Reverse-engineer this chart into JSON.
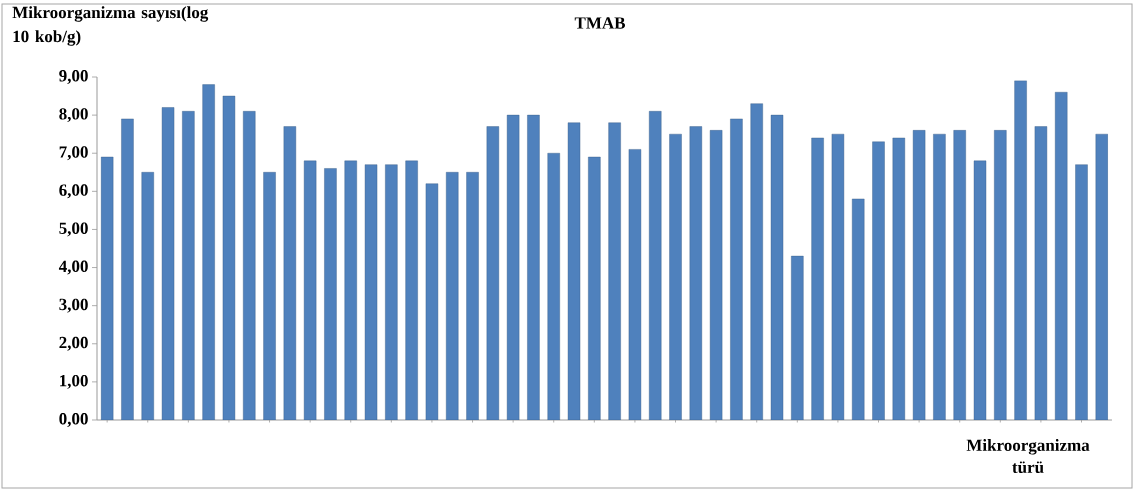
{
  "chart_data": {
    "type": "bar",
    "title": "TMAB",
    "xlabel": "Mikroorganizma türü",
    "ylabel": "Mikroorganizma sayısı(log 10 kob/g)",
    "categories": [
      null,
      null,
      null,
      null,
      null,
      null,
      null,
      null,
      null,
      null,
      null,
      null,
      null,
      null,
      null,
      null,
      null,
      null,
      null,
      null,
      null,
      null,
      null,
      null,
      null,
      null,
      null,
      null,
      null,
      null,
      null,
      null,
      null,
      null,
      null,
      null,
      null,
      null,
      null,
      null,
      null,
      null,
      null,
      null,
      null,
      null,
      null,
      null,
      null,
      null
    ],
    "values": [
      6.9,
      7.9,
      6.5,
      8.2,
      8.1,
      8.8,
      8.5,
      8.1,
      6.5,
      7.7,
      6.8,
      6.6,
      6.8,
      6.7,
      6.7,
      6.8,
      6.2,
      6.5,
      6.5,
      7.7,
      8.0,
      8.0,
      7.0,
      7.8,
      6.9,
      7.8,
      7.1,
      8.1,
      7.5,
      7.7,
      7.6,
      7.9,
      8.3,
      8.0,
      4.3,
      7.4,
      7.5,
      5.8,
      7.3,
      7.4,
      7.6,
      7.5,
      7.6,
      6.8,
      7.6,
      8.9,
      7.7,
      8.6,
      6.7,
      7.5
    ],
    "color": "#4f81bd",
    "ylim": [
      0,
      9
    ],
    "yticks": [
      {
        "value": 0,
        "label": "0,00"
      },
      {
        "value": 1,
        "label": "1,00"
      },
      {
        "value": 2,
        "label": "2,00"
      },
      {
        "value": 3,
        "label": "3,00"
      },
      {
        "value": 4,
        "label": "4,00"
      },
      {
        "value": 5,
        "label": "5,00"
      },
      {
        "value": 6,
        "label": "6,00"
      },
      {
        "value": 7,
        "label": "7,00"
      },
      {
        "value": 8,
        "label": "8,00"
      },
      {
        "value": 9,
        "label": "9,00"
      }
    ]
  }
}
